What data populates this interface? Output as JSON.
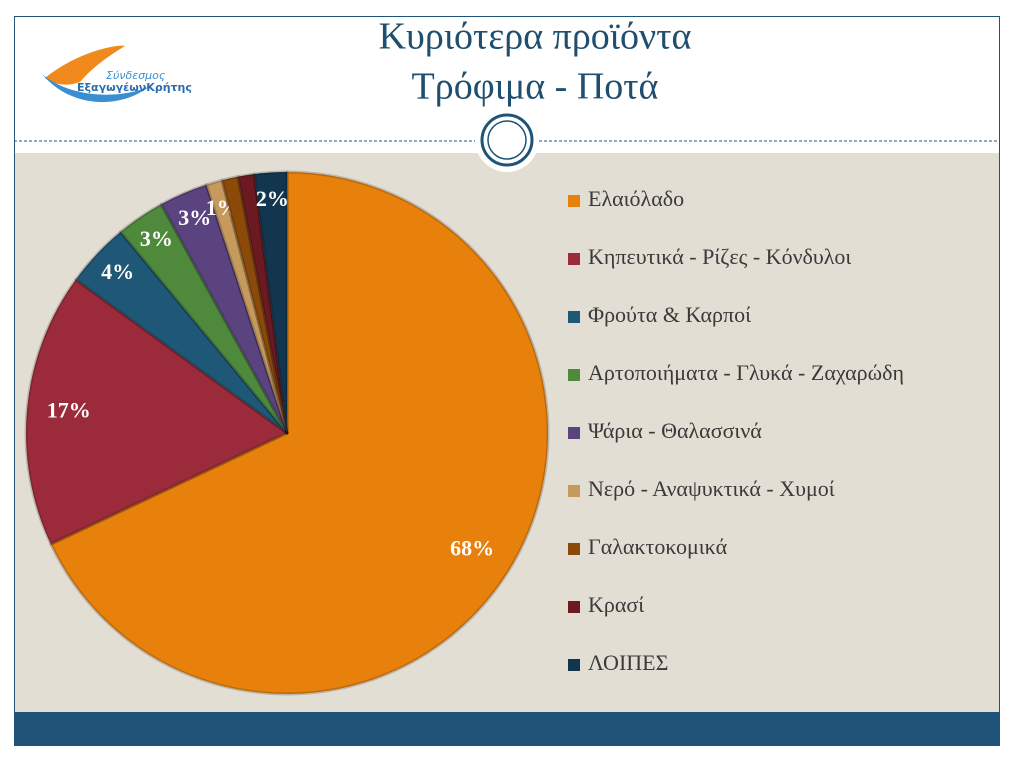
{
  "logo": {
    "line1": "Σύνδεσμος",
    "line2": "ΕξαγωγέωνΚρήτης"
  },
  "chart_data": {
    "type": "pie",
    "title": "Κυριότερα προϊόντα",
    "subtitle": "Τρόφιμα - Ποτά",
    "categories": [
      "Ελαιόλαδο",
      "Κηπευτικά - Ρίζες - Κόνδυλοι",
      "Φρούτα & Καρποί",
      "Αρτοποιήματα - Γλυκά - Ζαχαρώδη",
      "Ψάρια - Θαλασσινά",
      "Νερό - Αναψυκτικά - Χυμοί",
      "Γαλακτοκομικά",
      "Κρασί",
      "ΛΟΙΠΕΣ"
    ],
    "values": [
      68,
      17,
      4,
      3,
      3,
      1,
      1,
      1,
      2
    ],
    "value_labels": [
      "68%",
      "17%",
      "4%",
      "3%",
      "3%",
      "1%",
      null,
      null,
      "2%"
    ],
    "colors": [
      "#e8800c",
      "#9b2b3a",
      "#1f5876",
      "#4f8a3c",
      "#5b4380",
      "#c59a5c",
      "#8b4a0a",
      "#6a1a20",
      "#12364f"
    ],
    "legend": "right"
  }
}
